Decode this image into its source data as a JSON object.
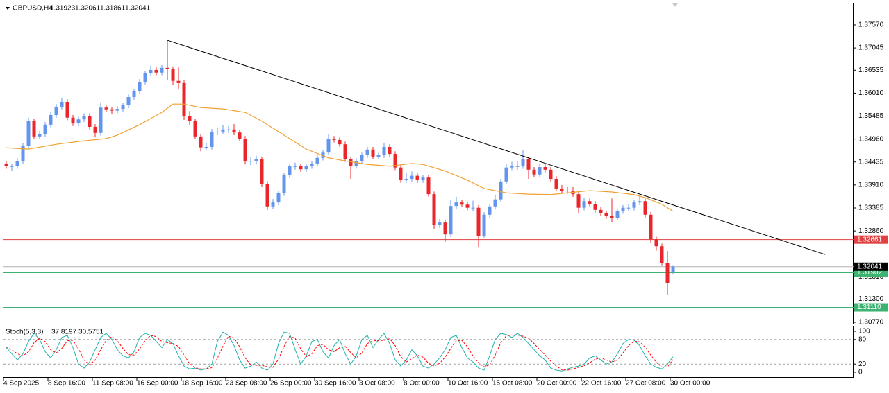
{
  "chart_data": {
    "type": "candlestick",
    "title": "GBPUSD,H4",
    "categories": [
      "4 Sep 2025",
      null,
      null,
      null,
      null,
      null,
      null,
      null,
      "8 Sep 16:00",
      null,
      null,
      null,
      null,
      null,
      null,
      null,
      "11 Sep 08:00",
      null,
      null,
      null,
      null,
      null,
      null,
      null,
      "16 Sep 00:00",
      null,
      null,
      null,
      null,
      null,
      null,
      null,
      "18 Sep 16:00",
      null,
      null,
      null,
      null,
      null,
      null,
      null,
      "23 Sep 08:00",
      null,
      null,
      null,
      null,
      null,
      null,
      null,
      "26 Sep 00:00",
      null,
      null,
      null,
      null,
      null,
      null,
      null,
      "30 Sep 16:00",
      null,
      null,
      null,
      null,
      null,
      null,
      null,
      "3 Oct 08:00",
      null,
      null,
      null,
      null,
      null,
      null,
      null,
      "8 Oct 00:00",
      null,
      null,
      null,
      null,
      null,
      null,
      null,
      "10 Oct 16:00",
      null,
      null,
      null,
      null,
      null,
      null,
      null,
      "15 Oct 08:00",
      null,
      null,
      null,
      null,
      null,
      null,
      null,
      "20 Oct 00:00",
      null,
      null,
      null,
      null,
      null,
      null,
      null,
      "22 Oct 16:00",
      null,
      null,
      null,
      null,
      null,
      null,
      null,
      "27 Oct 08:00",
      null,
      null,
      null,
      null,
      null,
      null,
      null,
      "30 Oct 00:00"
    ],
    "open": [
      1.344,
      1.3434,
      1.3434,
      1.3446,
      1.3481,
      1.3537,
      1.3502,
      1.3508,
      1.3529,
      1.3551,
      1.357,
      1.3581,
      1.3545,
      1.3532,
      1.3541,
      1.3549,
      1.3524,
      1.351,
      1.3568,
      1.3564,
      1.3561,
      1.3565,
      1.3573,
      1.3592,
      1.3605,
      1.3627,
      1.3646,
      1.3654,
      1.3648,
      1.3659,
      1.3656,
      1.3629,
      1.3624,
      1.3548,
      1.3537,
      1.3502,
      1.3477,
      1.3478,
      1.3513,
      1.3513,
      1.3518,
      1.3518,
      1.3511,
      1.3497,
      1.3446,
      1.3446,
      1.345,
      1.3394,
      1.3342,
      1.3351,
      1.3372,
      1.3413,
      1.3434,
      1.3434,
      1.3427,
      1.3434,
      1.344,
      1.3453,
      1.3465,
      1.3497,
      1.3494,
      1.3484,
      1.345,
      1.3434,
      1.3446,
      1.3459,
      1.3472,
      1.3456,
      1.3459,
      1.3478,
      1.3462,
      1.3431,
      1.3402,
      1.3405,
      1.3412,
      1.3402,
      1.3408,
      1.337,
      1.3299,
      1.3305,
      1.3278,
      1.3343,
      1.3351,
      1.3346,
      1.3339,
      1.3339,
      1.3275,
      1.3323,
      1.3342,
      1.3358,
      1.3399,
      1.3431,
      1.3434,
      1.3434,
      1.345,
      1.3426,
      1.3415,
      1.3432,
      1.3426,
      1.3405,
      1.3383,
      1.3378,
      1.3377,
      1.337,
      1.3339,
      1.3354,
      1.3348,
      1.3334,
      1.3326,
      1.332,
      1.3316,
      1.3331,
      1.3339,
      1.3339,
      1.3351,
      1.3354,
      1.3323,
      1.3267,
      1.3251,
      1.3212,
      1.31923
    ],
    "high": [
      1.3446,
      1.344,
      1.3452,
      1.3487,
      1.3545,
      1.3543,
      1.3514,
      1.3535,
      1.3557,
      1.3576,
      1.359,
      1.3587,
      1.3551,
      1.3547,
      1.3555,
      1.3555,
      1.353,
      1.358,
      1.3574,
      1.357,
      1.3571,
      1.3579,
      1.3598,
      1.3611,
      1.3633,
      1.3652,
      1.3664,
      1.366,
      1.3665,
      1.3722,
      1.3662,
      1.366,
      1.363,
      1.356,
      1.3543,
      1.3508,
      1.3486,
      1.3519,
      1.3521,
      1.3528,
      1.3526,
      1.353,
      1.3517,
      1.3503,
      1.3454,
      1.3458,
      1.3456,
      1.34,
      1.3359,
      1.3378,
      1.3419,
      1.344,
      1.3442,
      1.344,
      1.344,
      1.3446,
      1.3459,
      1.3471,
      1.3508,
      1.3503,
      1.35,
      1.349,
      1.3456,
      1.3452,
      1.3465,
      1.3478,
      1.3478,
      1.3465,
      1.3487,
      1.3484,
      1.3468,
      1.3437,
      1.3418,
      1.3422,
      1.3418,
      1.3414,
      1.3414,
      1.3376,
      1.3313,
      1.3311,
      1.3357,
      1.3364,
      1.3357,
      1.3352,
      1.3355,
      1.3345,
      1.3329,
      1.3348,
      1.3368,
      1.3405,
      1.344,
      1.3444,
      1.3445,
      1.347,
      1.3456,
      1.3432,
      1.344,
      1.3438,
      1.3432,
      1.3411,
      1.3391,
      1.3386,
      1.3386,
      1.3376,
      1.3362,
      1.336,
      1.3354,
      1.334,
      1.3332,
      1.336,
      1.3337,
      1.3345,
      1.3347,
      1.3357,
      1.3366,
      1.336,
      1.3329,
      1.3273,
      1.3257,
      1.324,
      1.32061
    ],
    "low": [
      1.3428,
      1.3424,
      1.3428,
      1.344,
      1.3475,
      1.3496,
      1.3496,
      1.3502,
      1.3523,
      1.3545,
      1.3564,
      1.3539,
      1.3526,
      1.3526,
      1.3535,
      1.3518,
      1.35,
      1.3504,
      1.3558,
      1.3553,
      1.3555,
      1.3559,
      1.3567,
      1.3586,
      1.3599,
      1.3621,
      1.364,
      1.3642,
      1.3642,
      1.363,
      1.362,
      1.361,
      1.354,
      1.3528,
      1.3496,
      1.3468,
      1.347,
      1.3472,
      1.3505,
      1.3507,
      1.351,
      1.3505,
      1.3491,
      1.3438,
      1.3436,
      1.3438,
      1.3386,
      1.3334,
      1.3336,
      1.3345,
      1.3366,
      1.3407,
      1.3426,
      1.3421,
      1.3421,
      1.3428,
      1.3434,
      1.3447,
      1.3459,
      1.3488,
      1.3478,
      1.3444,
      1.3405,
      1.3428,
      1.344,
      1.3453,
      1.345,
      1.345,
      1.3453,
      1.3456,
      1.3425,
      1.3396,
      1.3396,
      1.3399,
      1.3396,
      1.3396,
      1.3364,
      1.3291,
      1.3293,
      1.3261,
      1.3272,
      1.3337,
      1.334,
      1.3333,
      1.3331,
      1.3248,
      1.3269,
      1.3317,
      1.3336,
      1.3352,
      1.3393,
      1.3425,
      1.3426,
      1.3428,
      1.3405,
      1.3409,
      1.3409,
      1.342,
      1.3399,
      1.3377,
      1.3372,
      1.3371,
      1.3364,
      1.3327,
      1.3333,
      1.3342,
      1.3328,
      1.332,
      1.3314,
      1.3305,
      1.331,
      1.3325,
      1.3331,
      1.3333,
      1.3345,
      1.3317,
      1.3259,
      1.3241,
      1.3206,
      1.3139,
      1.31861
    ],
    "close": [
      1.3434,
      1.3434,
      1.3446,
      1.3481,
      1.3537,
      1.3502,
      1.3508,
      1.3529,
      1.3551,
      1.357,
      1.3581,
      1.3545,
      1.3532,
      1.3541,
      1.3549,
      1.3524,
      1.351,
      1.3568,
      1.3564,
      1.3561,
      1.3565,
      1.3573,
      1.3592,
      1.3605,
      1.3627,
      1.3646,
      1.3654,
      1.3648,
      1.3659,
      1.3656,
      1.3629,
      1.3624,
      1.3548,
      1.3537,
      1.3502,
      1.3477,
      1.3478,
      1.3513,
      1.3513,
      1.3518,
      1.3518,
      1.3511,
      1.3497,
      1.3446,
      1.3446,
      1.345,
      1.3394,
      1.3342,
      1.3351,
      1.3372,
      1.3413,
      1.3434,
      1.3434,
      1.3427,
      1.3434,
      1.344,
      1.3453,
      1.3465,
      1.3497,
      1.3494,
      1.3484,
      1.345,
      1.3434,
      1.3446,
      1.3459,
      1.3472,
      1.3456,
      1.3459,
      1.3478,
      1.3462,
      1.3431,
      1.3402,
      1.3405,
      1.3412,
      1.3402,
      1.3408,
      1.337,
      1.3299,
      1.3305,
      1.3278,
      1.3343,
      1.3351,
      1.3346,
      1.3339,
      1.3339,
      1.3275,
      1.3323,
      1.3342,
      1.3358,
      1.3399,
      1.3431,
      1.3434,
      1.3434,
      1.345,
      1.3426,
      1.3415,
      1.3432,
      1.3426,
      1.3405,
      1.3383,
      1.3378,
      1.3377,
      1.337,
      1.3339,
      1.3354,
      1.3348,
      1.3334,
      1.3326,
      1.332,
      1.3316,
      1.3331,
      1.3339,
      1.3339,
      1.3351,
      1.3354,
      1.3323,
      1.3267,
      1.3251,
      1.3212,
      1.3167,
      1.32041
    ],
    "up_color": "#6495ed",
    "down_color": "#e8262c",
    "current_price_color": "#000000",
    "ylim": [
      1.30722,
      1.38061
    ],
    "yticks": [
      {
        "value": 1.3757,
        "label": "1.37570"
      },
      1.37045,
      1.36535,
      {
        "value": 1.3601,
        "label": "1.36010"
      },
      1.35485,
      {
        "value": 1.3496,
        "label": "1.34960"
      },
      1.34435,
      {
        "value": 1.3391,
        "label": "1.33910"
      },
      1.33385,
      {
        "value": 1.3286,
        "label": "1.32860"
      },
      {
        "value": 1.3181,
        "label": "1.31810"
      },
      {
        "value": 1.313,
        "label": "1.31300"
      },
      {
        "value": 1.3077,
        "label": "1.30770"
      }
    ],
    "moving_average": {
      "color": "#f0a030",
      "x": [
        0,
        4,
        9,
        14,
        18,
        20,
        24,
        28,
        30,
        32,
        35,
        39,
        43,
        46,
        50,
        54,
        58,
        61,
        65,
        69,
        73,
        75,
        79,
        83,
        86,
        90,
        94,
        98,
        101,
        105,
        109,
        113,
        115,
        118,
        120
      ],
      "values": [
        1.3476,
        1.3473,
        1.3484,
        1.3492,
        1.3497,
        1.3505,
        1.3529,
        1.3557,
        1.3576,
        1.3576,
        1.3568,
        1.3565,
        1.3557,
        1.3537,
        1.3505,
        1.3473,
        1.3453,
        1.3446,
        1.3438,
        1.3434,
        1.344,
        1.3438,
        1.3423,
        1.3402,
        1.3383,
        1.3373,
        1.337,
        1.3369,
        1.3373,
        1.3378,
        1.3375,
        1.3369,
        1.3362,
        1.3347,
        1.3331
      ]
    },
    "trendline": {
      "color": "#000000",
      "x": [
        29,
        147.4
      ],
      "values": [
        1.3722,
        1.3232
      ]
    },
    "levels": [
      {
        "value": 1.32661,
        "color": "#e0403f"
      },
      {
        "value": 1.31902,
        "color": "#3cb371"
      },
      {
        "value": 1.3111,
        "label": "1.31110",
        "color": "#3cb371"
      }
    ],
    "indicator": {
      "type": "line",
      "title": "Stoch(5,3,3)",
      "ylim": [
        -13.6,
        111.9
      ],
      "yticks": [
        100,
        80,
        20,
        0
      ],
      "series": [
        {
          "color": "#20b2aa",
          "values": [
            60,
            45,
            30,
            45,
            75,
            95,
            80,
            50,
            35,
            55,
            85,
            90,
            60,
            20,
            10,
            25,
            55,
            85,
            95,
            80,
            55,
            40,
            35,
            50,
            85,
            95,
            90,
            75,
            60,
            80,
            70,
            40,
            15,
            8,
            10,
            5,
            8,
            20,
            75,
            98,
            90,
            65,
            30,
            10,
            15,
            25,
            10,
            5,
            20,
            70,
            98,
            95,
            55,
            20,
            40,
            75,
            80,
            50,
            35,
            65,
            80,
            45,
            20,
            40,
            80,
            90,
            60,
            80,
            95,
            70,
            30,
            15,
            30,
            55,
            40,
            15,
            10,
            20,
            35,
            55,
            85,
            90,
            60,
            35,
            25,
            10,
            5,
            40,
            80,
            95,
            92,
            85,
            95,
            85,
            70,
            55,
            40,
            30,
            10,
            5,
            3,
            8,
            12,
            15,
            20,
            35,
            40,
            30,
            20,
            25,
            45,
            70,
            80,
            78,
            65,
            40,
            20,
            12,
            8,
            20,
            37.8197
          ]
        },
        {
          "color": "#ff0000",
          "dashed": true,
          "values": [
            62,
            55,
            45,
            40,
            50,
            72,
            83,
            75,
            55,
            47,
            58,
            77,
            78,
            57,
            30,
            18,
            30,
            55,
            78,
            87,
            77,
            58,
            43,
            42,
            57,
            77,
            90,
            87,
            75,
            72,
            70,
            63,
            42,
            21,
            11,
            8,
            8,
            11,
            34,
            64,
            88,
            84,
            62,
            35,
            18,
            17,
            17,
            13,
            12,
            32,
            63,
            88,
            83,
            57,
            38,
            45,
            65,
            68,
            55,
            50,
            60,
            63,
            48,
            35,
            47,
            70,
            77,
            77,
            78,
            82,
            65,
            38,
            25,
            33,
            42,
            37,
            22,
            15,
            22,
            37,
            58,
            77,
            78,
            62,
            40,
            23,
            13,
            18,
            42,
            72,
            89,
            91,
            91,
            88,
            83,
            70,
            55,
            42,
            27,
            15,
            6,
            5,
            8,
            12,
            16,
            23,
            32,
            35,
            30,
            25,
            30,
            47,
            65,
            76,
            74,
            61,
            42,
            24,
            13,
            13,
            30.5751
          ]
        }
      ]
    }
  }
}
